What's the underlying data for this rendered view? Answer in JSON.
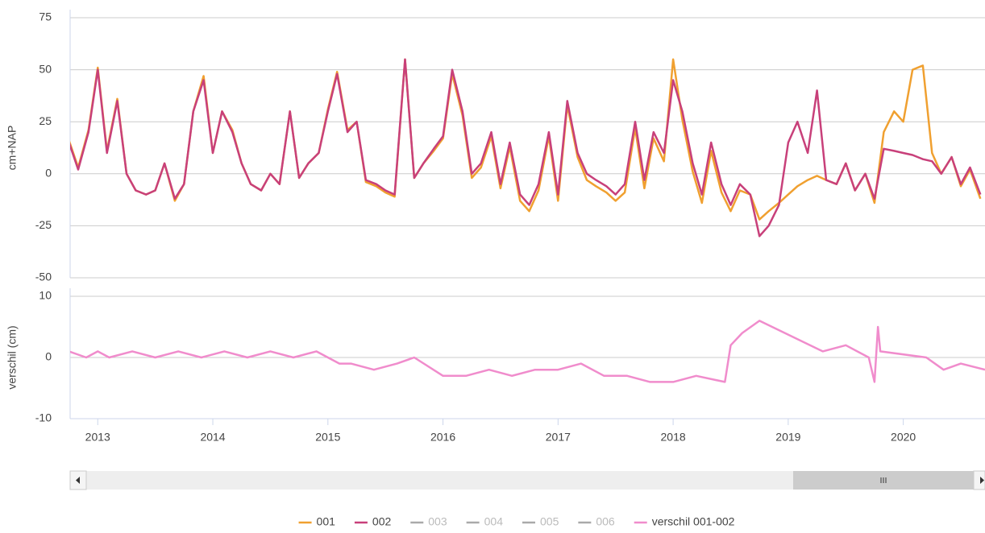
{
  "chart_data": [
    {
      "type": "line",
      "y_label": "cm+NAP",
      "ylim": [
        -50,
        75
      ],
      "yticks": [
        -50,
        -25,
        0,
        25,
        50,
        75
      ],
      "xlim": [
        2012.76,
        2020.71
      ],
      "grid": true,
      "x": [
        2012.75,
        2012.83,
        2012.92,
        2013.0,
        2013.08,
        2013.17,
        2013.25,
        2013.33,
        2013.42,
        2013.5,
        2013.58,
        2013.67,
        2013.75,
        2013.83,
        2013.92,
        2014.0,
        2014.08,
        2014.17,
        2014.25,
        2014.33,
        2014.42,
        2014.5,
        2014.58,
        2014.67,
        2014.75,
        2014.83,
        2014.92,
        2015.0,
        2015.08,
        2015.17,
        2015.25,
        2015.33,
        2015.42,
        2015.5,
        2015.58,
        2015.67,
        2015.75,
        2015.83,
        2015.92,
        2016.0,
        2016.08,
        2016.17,
        2016.25,
        2016.33,
        2016.42,
        2016.5,
        2016.58,
        2016.67,
        2016.75,
        2016.83,
        2016.92,
        2017.0,
        2017.08,
        2017.17,
        2017.25,
        2017.33,
        2017.42,
        2017.5,
        2017.58,
        2017.67,
        2017.75,
        2017.83,
        2017.92,
        2018.0,
        2018.08,
        2018.17,
        2018.25,
        2018.33,
        2018.42,
        2018.5,
        2018.58,
        2018.67,
        2018.75,
        2018.83,
        2018.92,
        2019.0,
        2019.08,
        2019.17,
        2019.25,
        2019.33,
        2019.42,
        2019.5,
        2019.58,
        2019.67,
        2019.75,
        2019.83,
        2019.92,
        2020.0,
        2020.08,
        2020.17,
        2020.25,
        2020.33,
        2020.42,
        2020.5,
        2020.58,
        2020.67
      ],
      "series": [
        {
          "name": "001",
          "color": "#f0a030",
          "visible": true,
          "values": [
            16,
            3,
            21,
            51,
            11,
            36,
            0,
            -8,
            -10,
            -8,
            5,
            -13,
            -5,
            30,
            47,
            10,
            30,
            21,
            5,
            -5,
            -8,
            0,
            -5,
            30,
            -2,
            5,
            10,
            31,
            49,
            21,
            25,
            -4,
            -6,
            -9,
            -11,
            55,
            -2,
            5,
            11,
            17,
            48,
            28,
            -2,
            3,
            18,
            -7,
            13,
            -13,
            -18,
            -8,
            18,
            -13,
            33,
            8,
            -3,
            -6,
            -9,
            -13,
            -9,
            22,
            -7,
            17,
            6,
            55,
            26,
            1,
            -14,
            11,
            -9,
            -18,
            -8,
            -10,
            -22,
            -18,
            -14,
            -10,
            -6,
            -3,
            -1,
            -3,
            -5,
            5,
            -8,
            0,
            -14,
            20,
            30,
            25,
            50,
            52,
            10,
            0,
            8,
            -6,
            2,
            -12
          ]
        },
        {
          "name": "002",
          "color": "#c8407a",
          "visible": true,
          "values": [
            15,
            2,
            20,
            50,
            10,
            35,
            0,
            -8,
            -10,
            -8,
            5,
            -12,
            -5,
            30,
            45,
            10,
            30,
            20,
            5,
            -5,
            -8,
            0,
            -5,
            30,
            -2,
            5,
            10,
            30,
            48,
            20,
            25,
            -3,
            -5,
            -8,
            -10,
            55,
            -2,
            5,
            12,
            18,
            50,
            30,
            0,
            5,
            20,
            -5,
            15,
            -10,
            -15,
            -5,
            20,
            -10,
            35,
            10,
            0,
            -3,
            -6,
            -10,
            -5,
            25,
            -3,
            20,
            10,
            45,
            30,
            5,
            -10,
            15,
            -5,
            -15,
            -5,
            -10,
            -30,
            -25,
            -15,
            15,
            25,
            10,
            40,
            -3,
            -5,
            5,
            -8,
            0,
            -12,
            12,
            11,
            10,
            9,
            7,
            6,
            0,
            8,
            -5,
            3,
            -10
          ]
        },
        {
          "name": "003",
          "color": "#aaaaaa",
          "visible": false
        },
        {
          "name": "004",
          "color": "#aaaaaa",
          "visible": false
        },
        {
          "name": "005",
          "color": "#aaaaaa",
          "visible": false
        },
        {
          "name": "006",
          "color": "#aaaaaa",
          "visible": false
        }
      ]
    },
    {
      "type": "line",
      "y_label": "verschil (cm)",
      "ylim": [
        -10,
        10
      ],
      "yticks": [
        -10,
        0,
        10
      ],
      "xlim": [
        2012.76,
        2020.71
      ],
      "xticks": [
        2013,
        2014,
        2015,
        2016,
        2017,
        2018,
        2019,
        2020
      ],
      "grid": true,
      "x": [
        2012.75,
        2012.9,
        2013.0,
        2013.1,
        2013.3,
        2013.5,
        2013.7,
        2013.9,
        2014.1,
        2014.3,
        2014.5,
        2014.7,
        2014.9,
        2015.1,
        2015.2,
        2015.4,
        2015.6,
        2015.75,
        2016.0,
        2016.2,
        2016.4,
        2016.6,
        2016.8,
        2017.0,
        2017.2,
        2017.4,
        2017.6,
        2017.8,
        2018.0,
        2018.2,
        2018.45,
        2018.5,
        2018.6,
        2018.75,
        2019.3,
        2019.5,
        2019.7,
        2019.75,
        2019.78,
        2019.8,
        2020.2,
        2020.35,
        2020.5,
        2020.71
      ],
      "series": [
        {
          "name": "verschil 001-002",
          "color": "#f08ccc",
          "visible": true,
          "values": [
            1,
            0,
            1,
            0,
            1,
            0,
            1,
            0,
            1,
            0,
            1,
            0,
            1,
            -1,
            -1,
            -2,
            -1,
            0,
            -3,
            -3,
            -2,
            -3,
            -2,
            -2,
            -1,
            -3,
            -3,
            -4,
            -4,
            -3,
            -4,
            2,
            4,
            6,
            1,
            2,
            0,
            -4,
            5,
            1,
            0,
            -2,
            -1,
            -2
          ]
        }
      ]
    }
  ]
}
